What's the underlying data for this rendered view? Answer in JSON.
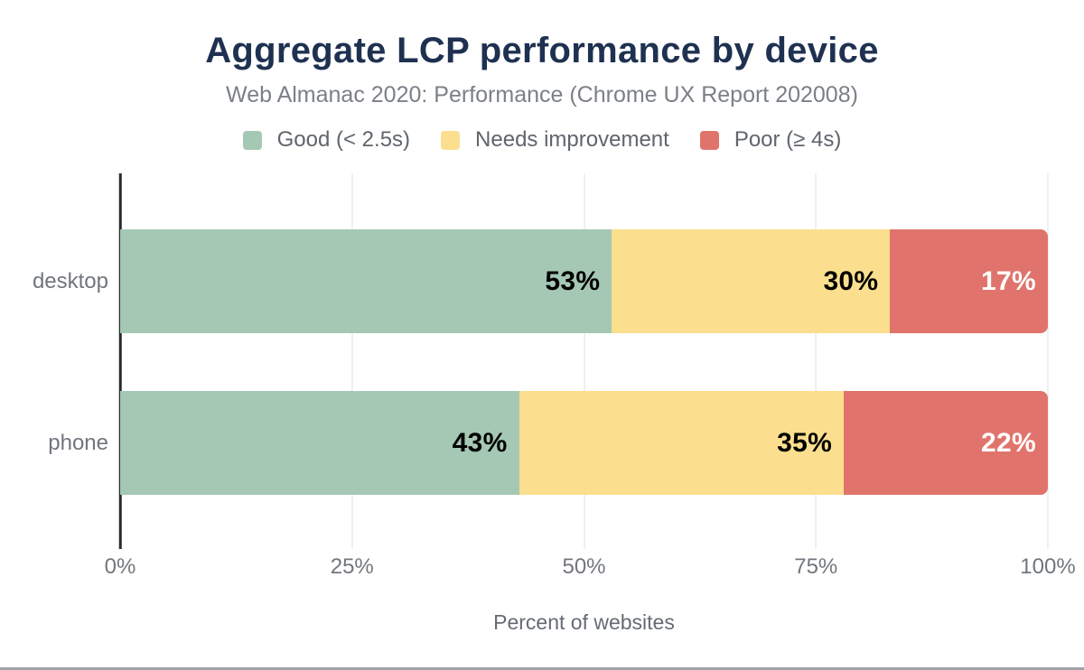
{
  "title": "Aggregate LCP performance by device",
  "subtitle": "Web Almanac 2020: Performance (Chrome UX Report 202008)",
  "x_axis_title": "Percent of websites",
  "colors": {
    "title_text": "#1f3151",
    "muted_text": "#71767d",
    "good": "#a5c8b4",
    "needs_improvement": "#fbdf8e",
    "poor": "#e0746c",
    "axis_line": "#26292e",
    "gridline": "#eef0f1"
  },
  "legend": [
    {
      "label": "Good (< 2.5s)",
      "color": "#a5c8b4"
    },
    {
      "label": "Needs improvement",
      "color": "#fbdf8e"
    },
    {
      "label": "Poor (≥ 4s)",
      "color": "#e0746c"
    }
  ],
  "chart_data": {
    "type": "bar",
    "orientation": "horizontal",
    "stacked": true,
    "title": "Aggregate LCP performance by device",
    "subtitle": "Web Almanac 2020: Performance (Chrome UX Report 202008)",
    "categories": [
      "desktop",
      "phone"
    ],
    "series": [
      {
        "name": "Good (< 2.5s)",
        "color": "#a5c8b4",
        "label_color": "#000000",
        "values": [
          53,
          43
        ]
      },
      {
        "name": "Needs improvement",
        "color": "#fbdf8e",
        "label_color": "#000000",
        "values": [
          30,
          35
        ]
      },
      {
        "name": "Poor (≥ 4s)",
        "color": "#e0746c",
        "label_color": "#ffffff",
        "values": [
          17,
          22
        ]
      }
    ],
    "value_suffix": "%",
    "xlabel": "Percent of websites",
    "ylabel": "",
    "xlim": [
      0,
      100
    ],
    "x_ticks": [
      "0%",
      "25%",
      "50%",
      "75%",
      "100%"
    ],
    "x_tick_values": [
      0,
      25,
      50,
      75,
      100
    ],
    "grid": true,
    "legend_position": "top"
  }
}
